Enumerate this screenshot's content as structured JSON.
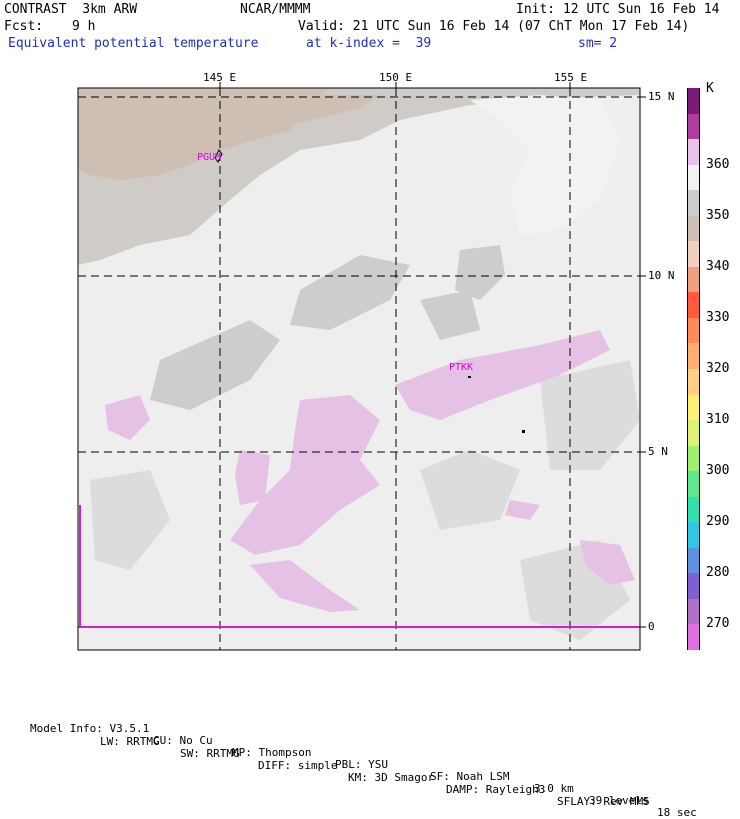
{
  "header": {
    "title": "CONTRAST  3km ARW",
    "source": "NCAR/MMMM",
    "init": "Init: 12 UTC Sun 16 Feb 14",
    "fcst_label": "Fcst:",
    "fcst_value": "9 h",
    "valid": "Valid: 21 UTC Sun 16 Feb 14 (07 ChT Mon 17 Feb 14)",
    "field": "Equivalent potential temperature",
    "level": "at k-index =  39",
    "smoothing": "sm= 2"
  },
  "map": {
    "lon_labels": [
      "145 E",
      "150 E",
      "155 E"
    ],
    "lat_labels": [
      "15 N",
      "10 N",
      "5 N",
      "0"
    ],
    "stations": [
      "PGUM",
      "PTKK"
    ]
  },
  "legend": {
    "unit": "K",
    "labels": [
      "360",
      "350",
      "340",
      "330",
      "320",
      "310",
      "300",
      "290",
      "280",
      "270"
    ],
    "colors": [
      "#7a1a7a",
      "#b03ca0",
      "#e8c2e8",
      "#f2f2f2",
      "#cdcdcd",
      "#cdbfb4",
      "#f3cfc0",
      "#f0a080",
      "#ff5a3c",
      "#ff8a5a",
      "#ffb070",
      "#ffd080",
      "#fff070",
      "#e0f070",
      "#a0f070",
      "#60e890",
      "#30e0b0",
      "#30c8e0",
      "#6090e0",
      "#8060d0",
      "#b070c8",
      "#e070e0"
    ]
  },
  "footer": {
    "line1": [
      "Model Info: V3.5.1",
      "CU: No Cu",
      "MP: Thompson",
      "PBL: YSU",
      "SF: Noah LSM",
      "3.0 km",
      "39 levels",
      "18 sec"
    ],
    "line2": [
      "LW: RRTMG",
      "SW: RRTMG",
      "DIFF: simple",
      "KM: 3D Smagor",
      "DAMP: Rayleigh3",
      "SFLAY: Rev MM5"
    ]
  }
}
